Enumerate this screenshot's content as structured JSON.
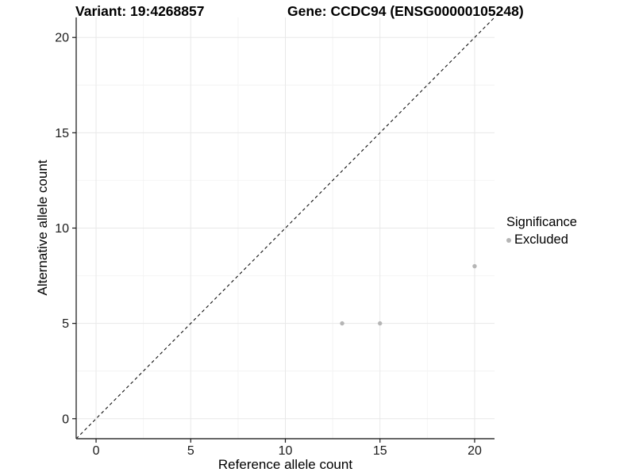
{
  "header": {
    "title_left": "Variant: 19:4268857",
    "title_right": "Gene: CCDC94 (ENSG00000105248)"
  },
  "chart_data": {
    "type": "scatter",
    "xlabel": "Reference allele count",
    "ylabel": "Alternative allele count",
    "xlim": [
      -1.05,
      21.05
    ],
    "ylim": [
      -1.05,
      21.05
    ],
    "xticks": [
      0,
      5,
      10,
      15,
      20
    ],
    "yticks": [
      0,
      5,
      10,
      15,
      20
    ],
    "xticks_minor": [
      2.5,
      7.5,
      12.5,
      17.5
    ],
    "yticks_minor": [
      2.5,
      7.5,
      12.5,
      17.5
    ],
    "grid": "major+minor",
    "reference_line": {
      "type": "identity",
      "equation": "y = x",
      "style": "dashed",
      "color": "#111111"
    },
    "series": [
      {
        "name": "Excluded",
        "color": "#b5b5b5",
        "marker": "circle",
        "points": [
          [
            13,
            5
          ],
          [
            15,
            5
          ],
          [
            20,
            8
          ]
        ]
      }
    ],
    "legend": {
      "title": "Significance",
      "position": "right",
      "entries": [
        {
          "label": "Excluded",
          "color": "#b5b5b5"
        }
      ]
    }
  },
  "colors": {
    "background": "#ffffff",
    "grid_major": "#e8e8e8",
    "grid_minor": "#f4f4f4",
    "axis_line": "#333333",
    "tick_mark": "#1a1a1a",
    "tick_label": "#1a1a1a",
    "text": "#000000"
  }
}
